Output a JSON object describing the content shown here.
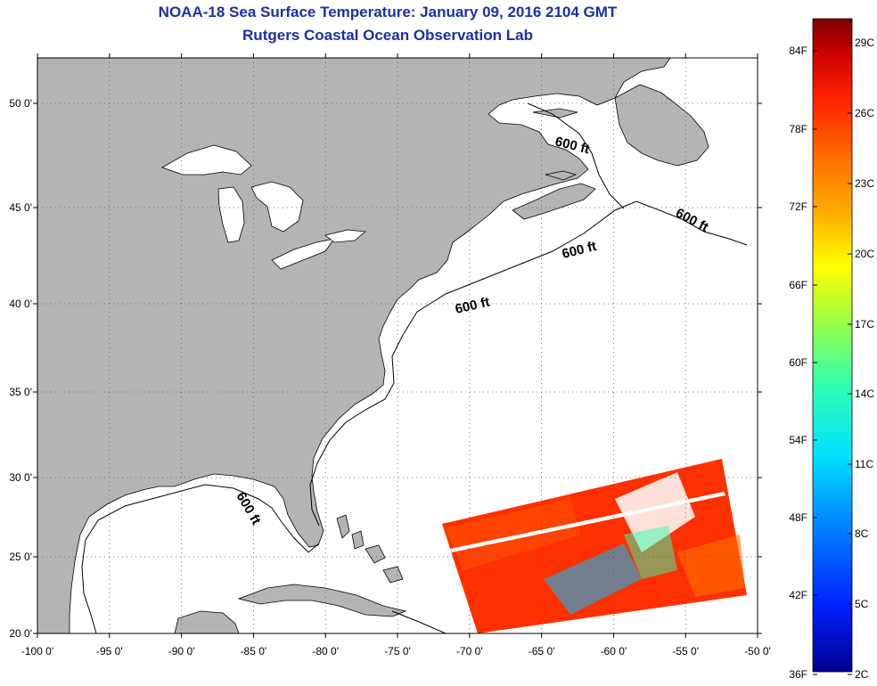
{
  "title": "NOAA-18 Sea Surface Temperature:  January 09, 2016 2104 GMT",
  "subtitle": "Rutgers Coastal Ocean Observation Lab",
  "map": {
    "lon_range": [
      -100,
      -50
    ],
    "lat_range": [
      20,
      52.5
    ],
    "x_ticks": [
      "-100 0'",
      "-95 0'",
      "-90 0'",
      "-85 0'",
      "-80 0'",
      "-75 0'",
      "-70 0'",
      "-65 0'",
      "-60 0'",
      "-55 0'",
      "-50 0'"
    ],
    "y_ticks": [
      "20 0'",
      "25 0'",
      "30 0'",
      "35 0'",
      "40 0'",
      "45 0'",
      "50 0'"
    ],
    "grid": "dotted",
    "land_color": "#b4b4b4",
    "isobath_labels": [
      "600 ft",
      "600 ft",
      "600 ft",
      "600 ft",
      "600 ft"
    ]
  },
  "colorbar": {
    "fahrenheit_labels": [
      "84F",
      "78F",
      "72F",
      "66F",
      "60F",
      "54F",
      "48F",
      "42F",
      "36F"
    ],
    "celsius_labels": [
      "29C",
      "26C",
      "23C",
      "20C",
      "17C",
      "14C",
      "11C",
      "8C",
      "5C",
      "2C"
    ],
    "colors": [
      "#7a0000",
      "#c80000",
      "#ff2000",
      "#ff6a00",
      "#ffb000",
      "#ffff00",
      "#a0ff40",
      "#30ffb0",
      "#00e0ff",
      "#0080ff",
      "#0020ff",
      "#00008c"
    ]
  }
}
